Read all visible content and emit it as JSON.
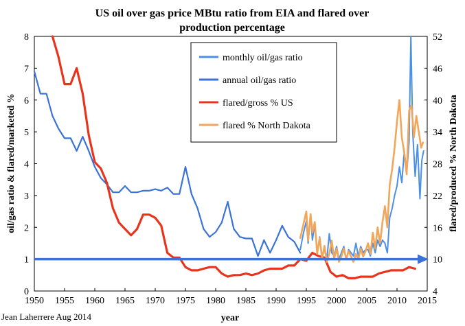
{
  "chart_data": {
    "type": "line",
    "title_line1": "US oil over gas price MBtu ratio from EIA and flared over",
    "title_line2": "production percentage",
    "xlabel": "year",
    "ylabel_left": "oil/gas ratio & flared/marketed %",
    "ylabel_right": "flared/produced % North Dakota",
    "credit": "Jean Laherrere Aug 2014",
    "xlim": [
      1950,
      2015
    ],
    "ylim_left": [
      0,
      8
    ],
    "ylim_right": [
      4,
      52
    ],
    "x_ticks": [
      1950,
      1955,
      1960,
      1965,
      1970,
      1975,
      1980,
      1985,
      1990,
      1995,
      2000,
      2005,
      2010,
      2015
    ],
    "y_left_ticks": [
      0,
      1,
      2,
      3,
      4,
      5,
      6,
      7,
      8
    ],
    "y_right_ticks": [
      4,
      10,
      16,
      22,
      28,
      34,
      40,
      46,
      52
    ],
    "reference_line": {
      "y": 1,
      "color": "#3a72d8"
    },
    "legend": {
      "position": "top-center",
      "entries": [
        {
          "label": "monthly oil/gas ratio",
          "color": "#4a8fe8"
        },
        {
          "label": "annual oil/gas ratio",
          "color": "#3a72d8"
        },
        {
          "label": "flared/gross % US",
          "color": "#e8341c"
        },
        {
          "label": "flared % North Dakota",
          "color": "#f2a65a"
        }
      ]
    },
    "series": [
      {
        "name": "annual oil/gas ratio",
        "color": "#3a72d8",
        "axis": "left",
        "x": [
          1950,
          1951,
          1952,
          1953,
          1954,
          1955,
          1956,
          1957,
          1958,
          1959,
          1960,
          1961,
          1962,
          1963,
          1964,
          1965,
          1966,
          1967,
          1968,
          1969,
          1970,
          1971,
          1972,
          1973,
          1974,
          1975,
          1976,
          1977,
          1978,
          1979,
          1980,
          1981,
          1982,
          1983,
          1984,
          1985,
          1986,
          1987,
          1988,
          1989,
          1990,
          1991,
          1992,
          1993,
          1994
        ],
        "values": [
          6.9,
          6.2,
          6.2,
          5.5,
          5.1,
          4.8,
          4.8,
          4.4,
          4.85,
          4.4,
          3.9,
          3.55,
          3.35,
          3.1,
          3.1,
          3.3,
          3.1,
          3.1,
          3.15,
          3.15,
          3.2,
          3.15,
          3.25,
          3.05,
          3.05,
          3.9,
          3.05,
          2.6,
          1.95,
          1.7,
          1.85,
          2.15,
          2.8,
          1.95,
          1.7,
          1.65,
          1.65,
          1.1,
          1.6,
          1.2,
          1.6,
          2.05,
          1.7,
          1.55,
          1.2
        ]
      },
      {
        "name": "monthly oil/gas ratio",
        "color": "#4a8fe8",
        "axis": "left",
        "x": [
          1994.0,
          1994.5,
          1995.0,
          1995.3,
          1995.7,
          1996.0,
          1996.4,
          1996.8,
          1997.2,
          1997.6,
          1998.0,
          1998.4,
          1998.8,
          1999.2,
          1999.6,
          2000.0,
          2000.4,
          2000.8,
          2001.2,
          2001.6,
          2002.0,
          2002.4,
          2002.8,
          2003.2,
          2003.6,
          2004.0,
          2004.4,
          2004.8,
          2005.2,
          2005.6,
          2006.0,
          2006.4,
          2006.8,
          2007.2,
          2007.6,
          2008.0,
          2008.4,
          2008.8,
          2009.2,
          2009.6,
          2010.0,
          2010.4,
          2010.8,
          2011.2,
          2011.6,
          2012.0,
          2012.3,
          2012.6,
          2013.0,
          2013.4,
          2013.8,
          2014.1,
          2014.4
        ],
        "values": [
          1.3,
          1.8,
          2.2,
          1.5,
          2.4,
          1.6,
          2.1,
          1.2,
          1.7,
          1.1,
          1.3,
          1.0,
          1.8,
          1.2,
          1.1,
          1.4,
          1.0,
          1.2,
          1.4,
          1.0,
          1.3,
          1.2,
          1.1,
          1.5,
          1.1,
          1.4,
          1.2,
          1.3,
          1.3,
          1.1,
          1.5,
          1.2,
          1.6,
          1.4,
          1.6,
          1.5,
          1.2,
          2.3,
          2.6,
          3.0,
          3.3,
          3.9,
          3.4,
          4.4,
          3.7,
          4.7,
          8.0,
          5.0,
          3.6,
          4.6,
          2.9,
          4.1,
          4.4
        ]
      },
      {
        "name": "flared/gross % US",
        "color": "#e8341c",
        "axis": "left",
        "x": [
          1953,
          1954,
          1955,
          1956,
          1957,
          1958,
          1959,
          1960,
          1961,
          1962,
          1963,
          1964,
          1965,
          1966,
          1967,
          1968,
          1969,
          1970,
          1971,
          1972,
          1973,
          1974,
          1975,
          1976,
          1977,
          1978,
          1979,
          1980,
          1981,
          1982,
          1983,
          1984,
          1985,
          1986,
          1987,
          1988,
          1989,
          1990,
          1991,
          1992,
          1993,
          1994,
          1995,
          1996,
          1997,
          1998,
          1999,
          2000,
          2001,
          2002,
          2003,
          2004,
          2005,
          2006,
          2007,
          2008,
          2009,
          2010,
          2011,
          2012,
          2013
        ],
        "values": [
          8.0,
          7.35,
          6.5,
          6.5,
          7.0,
          6.2,
          4.9,
          4.05,
          3.85,
          3.4,
          2.6,
          2.15,
          1.95,
          1.75,
          1.95,
          2.4,
          2.4,
          2.3,
          2.05,
          1.2,
          1.05,
          1.05,
          0.75,
          0.65,
          0.65,
          0.7,
          0.75,
          0.75,
          0.55,
          0.45,
          0.5,
          0.5,
          0.55,
          0.5,
          0.55,
          0.65,
          0.7,
          0.7,
          0.7,
          0.8,
          0.8,
          1.0,
          0.95,
          1.2,
          1.1,
          1.05,
          0.6,
          0.45,
          0.5,
          0.4,
          0.4,
          0.45,
          0.45,
          0.45,
          0.55,
          0.6,
          0.65,
          0.65,
          0.65,
          0.75,
          0.7
        ]
      },
      {
        "name": "flared % North Dakota",
        "color": "#f2a65a",
        "axis": "right",
        "x": [
          1994.0,
          1994.5,
          1995.0,
          1995.3,
          1995.7,
          1996.0,
          1996.4,
          1996.8,
          1997.2,
          1997.6,
          1998.0,
          1998.4,
          1998.8,
          1999.2,
          1999.6,
          2000.0,
          2000.4,
          2000.8,
          2001.2,
          2001.6,
          2002.0,
          2002.4,
          2002.8,
          2003.2,
          2003.6,
          2004.0,
          2004.4,
          2004.8,
          2005.2,
          2005.6,
          2006.0,
          2006.4,
          2006.8,
          2007.2,
          2007.6,
          2008.0,
          2008.4,
          2008.8,
          2009.2,
          2009.6,
          2010.0,
          2010.4,
          2010.8,
          2011.2,
          2011.6,
          2012.0,
          2012.4,
          2012.8,
          2013.2,
          2013.6,
          2014.0,
          2014.3
        ],
        "values": [
          14,
          16.5,
          19,
          13.5,
          18.5,
          15,
          17,
          11,
          14,
          10,
          12.5,
          9.5,
          11,
          13.5,
          10,
          12,
          9.5,
          10.5,
          12,
          10,
          11.5,
          10.5,
          9.5,
          11,
          10,
          12,
          10.5,
          11.5,
          13,
          11,
          15,
          12,
          16,
          13,
          17,
          20,
          16,
          24,
          27,
          31,
          36,
          40,
          33,
          30,
          26,
          38,
          39,
          33,
          37,
          34,
          31,
          32
        ]
      }
    ],
    "grid": false
  }
}
